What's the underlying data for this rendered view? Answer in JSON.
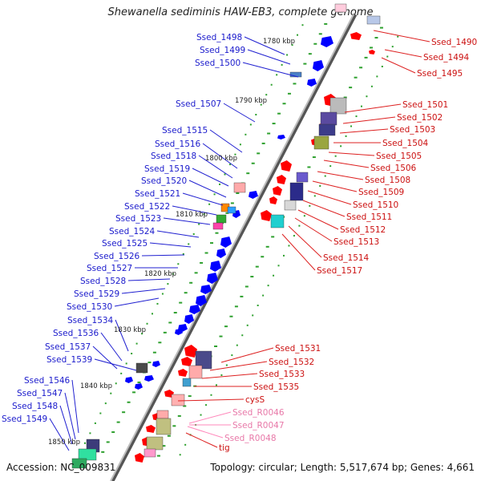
{
  "title": "Shewanella sediminis HAW-EB3, complete genome",
  "footer": {
    "accession": "Accession: NC_009831",
    "summary": "Topology: circular; Length: 5,517,674 bp; Genes: 4,661"
  },
  "colors": {
    "forward": "#ff0000",
    "reverse": "#0000ff",
    "rna": "#ff88bb",
    "backbone": "#808080",
    "dots": "#2ea02e"
  },
  "chart_data": {
    "type": "genome-map",
    "kbp_ticks": [
      "1780 kbp",
      "1790 kbp",
      "1800 kbp",
      "1810 kbp",
      "1820 kbp",
      "1830 kbp",
      "1840 kbp",
      "1850 kbp"
    ],
    "reverse_genes": [
      "Ssed_1498",
      "Ssed_1499",
      "Ssed_1500",
      "Ssed_1507",
      "Ssed_1515",
      "Ssed_1516",
      "Ssed_1518",
      "Ssed_1519",
      "Ssed_1520",
      "Ssed_1521",
      "Ssed_1522",
      "Ssed_1523",
      "Ssed_1524",
      "Ssed_1525",
      "Ssed_1526",
      "Ssed_1527",
      "Ssed_1528",
      "Ssed_1529",
      "Ssed_1530",
      "Ssed_1534",
      "Ssed_1536",
      "Ssed_1537",
      "Ssed_1539",
      "Ssed_1546",
      "Ssed_1547",
      "Ssed_1548",
      "Ssed_1549"
    ],
    "forward_genes": [
      "Ssed_1490",
      "Ssed_1494",
      "Ssed_1495",
      "Ssed_1501",
      "Ssed_1502",
      "Ssed_1503",
      "Ssed_1504",
      "Ssed_1505",
      "Ssed_1506",
      "Ssed_1508",
      "Ssed_1509",
      "Ssed_1510",
      "Ssed_1511",
      "Ssed_1512",
      "Ssed_1513",
      "Ssed_1514",
      "Ssed_1517",
      "Ssed_1531",
      "Ssed_1532",
      "Ssed_1533",
      "Ssed_1535",
      "cysS",
      "tig"
    ],
    "rna_genes": [
      "Ssed_R0046",
      "Ssed_R0047",
      "Ssed_R0048"
    ]
  }
}
